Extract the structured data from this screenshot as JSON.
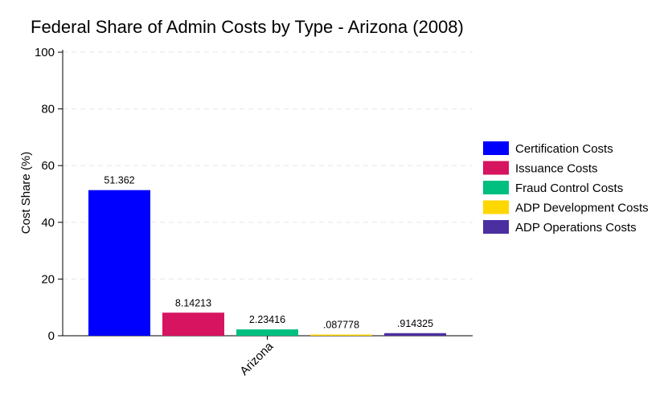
{
  "chart_data": {
    "type": "bar",
    "title": "Federal Share of Admin Costs by Type - Arizona (2008)",
    "xlabel": "",
    "ylabel": "Cost Share (%)",
    "categories": [
      "Arizona"
    ],
    "ylim": [
      0,
      100
    ],
    "yticks": [
      0,
      20,
      40,
      60,
      80,
      100
    ],
    "grid": true,
    "legend_position": "right",
    "series": [
      {
        "name": "Certification Costs",
        "values": [
          51.362
        ],
        "label": "51.362",
        "color": "#0000ff"
      },
      {
        "name": "Issuance Costs",
        "values": [
          8.14213
        ],
        "label": "8.14213",
        "color": "#d6145f"
      },
      {
        "name": "Fraud Control Costs",
        "values": [
          2.23416
        ],
        "label": "2.23416",
        "color": "#00bf7f"
      },
      {
        "name": "ADP Development Costs",
        "values": [
          0.087778
        ],
        "label": ".087778",
        "color": "#ffd700"
      },
      {
        "name": "ADP Operations Costs",
        "values": [
          0.914325
        ],
        "label": ".914325",
        "color": "#4b2fa0"
      }
    ]
  }
}
